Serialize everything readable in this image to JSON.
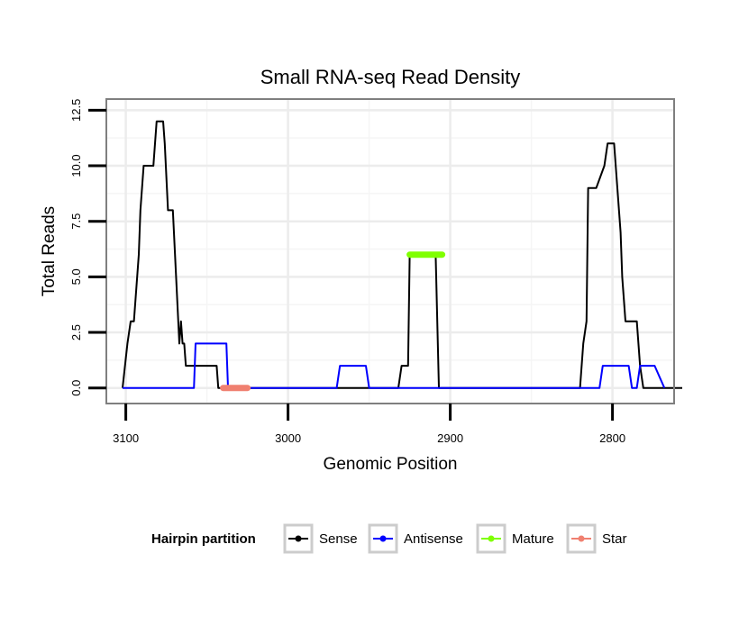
{
  "chart_data": {
    "type": "line",
    "title": "Small RNA-seq Read Density",
    "xlabel": "Genomic Position",
    "ylabel": "Total Reads",
    "xlim": [
      3112,
      2762
    ],
    "ylim": [
      -0.7,
      13
    ],
    "x_reversed": true,
    "grid": true,
    "legend_position": "bottom",
    "x_ticks": [
      3100,
      3000,
      2900,
      2800
    ],
    "x_tick_labels": [
      "3100",
      "3000",
      "2900",
      "2800"
    ],
    "y_ticks": [
      0,
      2.5,
      5,
      7.5,
      10,
      12.5
    ],
    "y_tick_labels": [
      "0.0",
      "2.5",
      "5.0",
      "7.5",
      "10.0",
      "12.5"
    ],
    "legend": {
      "title": "Hairpin partition",
      "entries": [
        {
          "name": "Sense",
          "color": "#000000"
        },
        {
          "name": "Antisense",
          "color": "#0000ff"
        },
        {
          "name": "Mature",
          "color": "#7fff00"
        },
        {
          "name": "Star",
          "color": "#f08070"
        }
      ]
    },
    "series": [
      {
        "name": "Sense",
        "color": "#000000",
        "x": [
          3102,
          3099,
          3097,
          3095,
          3094,
          3092,
          3091,
          3089,
          3087,
          3083,
          3081,
          3077,
          3076,
          3074,
          3073,
          3071,
          3069,
          3067,
          3066,
          3065,
          3064,
          3063,
          3062,
          3061,
          3060,
          3058,
          3054,
          3044,
          3043,
          3040,
          3035,
          3030,
          2932,
          2930,
          2928,
          2926,
          2925,
          2924,
          2920,
          2910,
          2909,
          2907,
          2900,
          2830,
          2820,
          2818,
          2816,
          2815,
          2812,
          2810,
          2805,
          2803,
          2801,
          2799,
          2797,
          2795,
          2794,
          2793,
          2792,
          2790,
          2785,
          2783,
          2781,
          2779,
          2776,
          2760,
          2757
        ],
        "y": [
          0,
          2,
          3,
          3,
          4,
          6,
          8,
          10,
          10,
          10,
          12,
          12,
          11,
          8,
          8,
          8,
          5,
          2,
          3,
          2,
          2,
          1,
          1,
          1,
          1,
          1,
          1,
          1,
          0,
          0,
          0,
          0,
          0,
          1,
          1,
          1,
          6,
          6,
          6,
          6,
          6,
          0,
          0,
          0,
          0,
          2,
          3,
          9,
          9,
          9,
          10,
          11,
          11,
          11,
          9,
          7,
          5,
          4,
          3,
          3,
          3,
          1,
          0,
          0,
          0,
          0,
          0
        ]
      },
      {
        "name": "Antisense",
        "color": "#0000ff",
        "x": [
          3102,
          3058,
          3057,
          3038,
          3037,
          3030,
          2970,
          2968,
          2952,
          2950,
          2910,
          2830,
          2808,
          2806,
          2790,
          2788,
          2785,
          2783,
          2781,
          2774,
          2768
        ],
        "y": [
          0,
          0,
          2,
          2,
          0,
          0,
          0,
          1,
          1,
          0,
          0,
          0,
          0,
          1,
          1,
          0,
          0,
          1,
          1,
          1,
          0
        ]
      },
      {
        "name": "Mature",
        "color": "#7fff00",
        "x": [
          2925,
          2905
        ],
        "y": [
          6,
          6
        ]
      },
      {
        "name": "Star",
        "color": "#f08070",
        "x": [
          3040,
          3025
        ],
        "y": [
          0,
          0
        ]
      }
    ]
  }
}
